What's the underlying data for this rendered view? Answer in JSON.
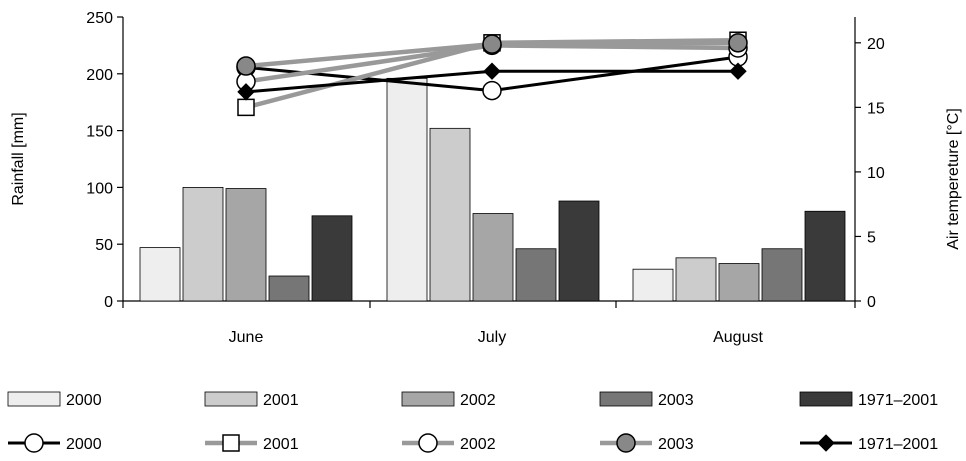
{
  "chart_data": {
    "type": "bar",
    "categories": [
      "June",
      "July",
      "August"
    ],
    "y_left": {
      "label": "Rainfall [mm]",
      "ylim": [
        0,
        250
      ],
      "ticks": [
        "0",
        "50",
        "100",
        "150",
        "200",
        "250"
      ]
    },
    "y_right": {
      "label": "Air tempereture [°C]",
      "ylim": [
        0,
        22
      ],
      "ticks": [
        "0",
        "5",
        "10",
        "15",
        "20"
      ]
    },
    "grid": false,
    "legend_position": "bottom",
    "bar_series": [
      {
        "name": "2000",
        "values": [
          47,
          196,
          28
        ],
        "color": "#eeeeee"
      },
      {
        "name": "2001",
        "values": [
          100,
          152,
          38
        ],
        "color": "#cccccc"
      },
      {
        "name": "2002",
        "values": [
          99,
          77,
          33
        ],
        "color": "#a6a6a6"
      },
      {
        "name": "2003",
        "values": [
          22,
          46,
          46
        ],
        "color": "#767676"
      },
      {
        "name": "1971–2001",
        "values": [
          75,
          88,
          79
        ],
        "color": "#3a3a3a"
      }
    ],
    "line_series": [
      {
        "name": "2000",
        "values": [
          18.1,
          16.3,
          18.9
        ],
        "line_color": "#000000",
        "marker": "circle",
        "marker_fill": "#ffffff"
      },
      {
        "name": "2001",
        "values": [
          15.0,
          20.0,
          20.2
        ],
        "line_color": "#999999",
        "marker": "square",
        "marker_fill": "#ffffff"
      },
      {
        "name": "2002",
        "values": [
          17.0,
          19.8,
          19.6
        ],
        "line_color": "#999999",
        "marker": "circle",
        "marker_fill": "#ffffff"
      },
      {
        "name": "2003",
        "values": [
          18.2,
          19.9,
          20.0
        ],
        "line_color": "#999999",
        "marker": "circle",
        "marker_fill": "#888888"
      },
      {
        "name": "1971–2001",
        "values": [
          16.2,
          17.8,
          17.8
        ],
        "line_color": "#000000",
        "marker": "diamond",
        "marker_fill": "#000000"
      }
    ]
  }
}
